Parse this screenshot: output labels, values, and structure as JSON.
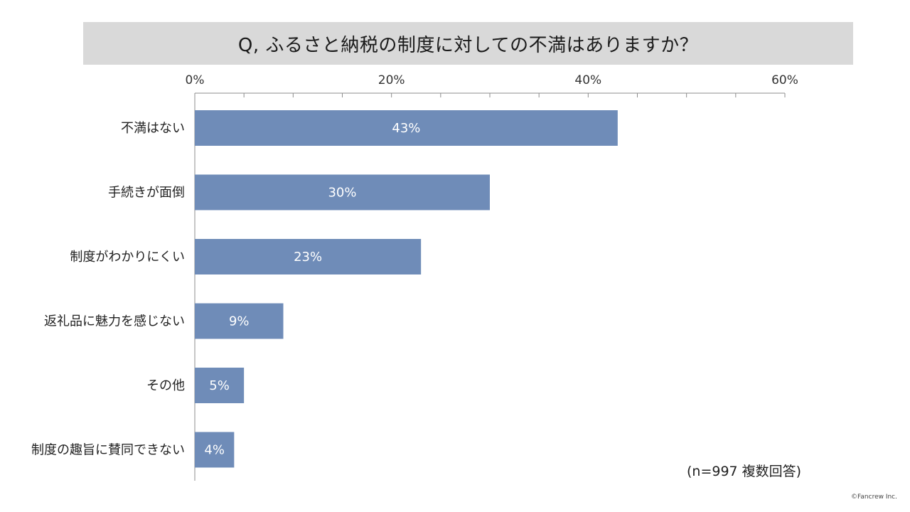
{
  "chart_data": {
    "type": "bar",
    "orientation": "horizontal",
    "title": "Q, ふるさと納税の制度に対しての不満はありますか？",
    "categories": [
      "不満はない",
      "手続きが面倒",
      "制度がわかりにくい",
      "返礼品に魅力を感じない",
      "その他",
      "制度の趣旨に賛同できない"
    ],
    "values": [
      43,
      30,
      23,
      9,
      5,
      4
    ],
    "value_labels": [
      "43%",
      "30%",
      "23%",
      "9%",
      "5%",
      "4%"
    ],
    "xlim": [
      0,
      60
    ],
    "x_ticks": [
      0,
      20,
      40,
      60
    ],
    "x_tick_labels": [
      "0%",
      "20%",
      "40%",
      "60%"
    ],
    "minor_tick_step": 5,
    "axis_position": "top",
    "grid": false,
    "legend": "none",
    "bar_color": "#6f8cb8"
  },
  "note": "(n=997 複数回答)",
  "credit": "©Fancrew Inc."
}
